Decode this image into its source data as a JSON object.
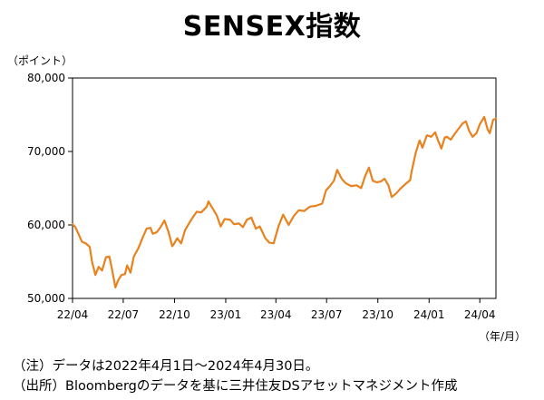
{
  "title": "SENSEX指数",
  "notes": {
    "note1": "（注）データは2022年4月1日～2024年4月30日。",
    "note2": "（出所）Bloombergのデータを基に三井住友DSアセットマネジメント作成"
  },
  "colors": {
    "line": "#E8821E",
    "frame": "#000000",
    "background": "#ffffff"
  },
  "chart_data": {
    "type": "line",
    "title": "SENSEX指数",
    "ylabel": "（ポイント）",
    "xlabel": "（年/月）",
    "ylim": [
      50000,
      80000
    ],
    "yticks": [
      50000,
      60000,
      70000,
      80000
    ],
    "ytick_labels": [
      "50,000",
      "60,000",
      "70,000",
      "80,000"
    ],
    "xticks": [
      "2022-04-01",
      "2022-07-01",
      "2022-10-01",
      "2023-01-01",
      "2023-04-01",
      "2023-07-01",
      "2023-10-01",
      "2024-01-01",
      "2024-04-01"
    ],
    "xtick_labels": [
      "22/04",
      "22/07",
      "22/10",
      "23/01",
      "23/04",
      "23/07",
      "23/10",
      "24/01",
      "24/04"
    ],
    "xlim": [
      "2022-04-01",
      "2024-04-30"
    ],
    "grid": false,
    "legend": "none",
    "series": [
      {
        "x": [
          "2022-04-01",
          "2022-04-06",
          "2022-04-12",
          "2022-04-18",
          "2022-04-25",
          "2022-05-02",
          "2022-05-06",
          "2022-05-12",
          "2022-05-18",
          "2022-05-24",
          "2022-05-31",
          "2022-06-06",
          "2022-06-10",
          "2022-06-17",
          "2022-06-22",
          "2022-06-28",
          "2022-07-04",
          "2022-07-08",
          "2022-07-14",
          "2022-07-20",
          "2022-07-28",
          "2022-08-05",
          "2022-08-12",
          "2022-08-19",
          "2022-08-23",
          "2022-08-30",
          "2022-09-06",
          "2022-09-13",
          "2022-09-20",
          "2022-09-27",
          "2022-09-30",
          "2022-10-06",
          "2022-10-13",
          "2022-10-20",
          "2022-10-31",
          "2022-11-10",
          "2022-11-18",
          "2022-11-28",
          "2022-12-01",
          "2022-12-09",
          "2022-12-16",
          "2022-12-23",
          "2022-12-30",
          "2023-01-09",
          "2023-01-16",
          "2023-01-25",
          "2023-02-01",
          "2023-02-08",
          "2023-02-16",
          "2023-02-24",
          "2023-03-03",
          "2023-03-13",
          "2023-03-20",
          "2023-03-28",
          "2023-04-06",
          "2023-04-14",
          "2023-04-24",
          "2023-05-03",
          "2023-05-12",
          "2023-05-22",
          "2023-06-01",
          "2023-06-12",
          "2023-06-23",
          "2023-06-30",
          "2023-07-07",
          "2023-07-14",
          "2023-07-20",
          "2023-07-28",
          "2023-08-04",
          "2023-08-14",
          "2023-08-24",
          "2023-09-01",
          "2023-09-08",
          "2023-09-15",
          "2023-09-22",
          "2023-09-29",
          "2023-10-06",
          "2023-10-13",
          "2023-10-20",
          "2023-10-26",
          "2023-11-03",
          "2023-11-10",
          "2023-11-20",
          "2023-11-28",
          "2023-12-01",
          "2023-12-08",
          "2023-12-15",
          "2023-12-20",
          "2023-12-28",
          "2024-01-05",
          "2024-01-12",
          "2024-01-17",
          "2024-01-23",
          "2024-01-29",
          "2024-02-02",
          "2024-02-09",
          "2024-02-16",
          "2024-02-23",
          "2024-03-01",
          "2024-03-07",
          "2024-03-13",
          "2024-03-19",
          "2024-03-26",
          "2024-04-01",
          "2024-04-09",
          "2024-04-15",
          "2024-04-19",
          "2024-04-25",
          "2024-04-30"
        ],
        "values": [
          60100,
          59700,
          58700,
          57700,
          57500,
          57000,
          55000,
          53200,
          54300,
          53800,
          55600,
          55700,
          54300,
          51500,
          52500,
          53200,
          53300,
          54500,
          53500,
          55700,
          56800,
          58300,
          59500,
          59600,
          58800,
          59000,
          59700,
          60600,
          59100,
          57100,
          57400,
          58200,
          57500,
          59300,
          60700,
          61800,
          61700,
          62500,
          63200,
          62200,
          61300,
          59800,
          60800,
          60700,
          60100,
          60200,
          59700,
          60700,
          61000,
          59500,
          59800,
          58200,
          57600,
          57500,
          59900,
          61400,
          60000,
          61200,
          62000,
          61900,
          62500,
          62600,
          62900,
          64700,
          65300,
          66000,
          67500,
          66300,
          65700,
          65300,
          65400,
          65000,
          66600,
          67800,
          66000,
          65800,
          65900,
          66300,
          65400,
          63800,
          64300,
          64900,
          65600,
          66100,
          67400,
          69800,
          71500,
          70500,
          72200,
          72000,
          72600,
          71500,
          70400,
          71900,
          72000,
          71600,
          72400,
          73100,
          73800,
          74100,
          72800,
          72000,
          72500,
          73700,
          74700,
          73000,
          72500,
          74300,
          74500
        ]
      }
    ]
  }
}
